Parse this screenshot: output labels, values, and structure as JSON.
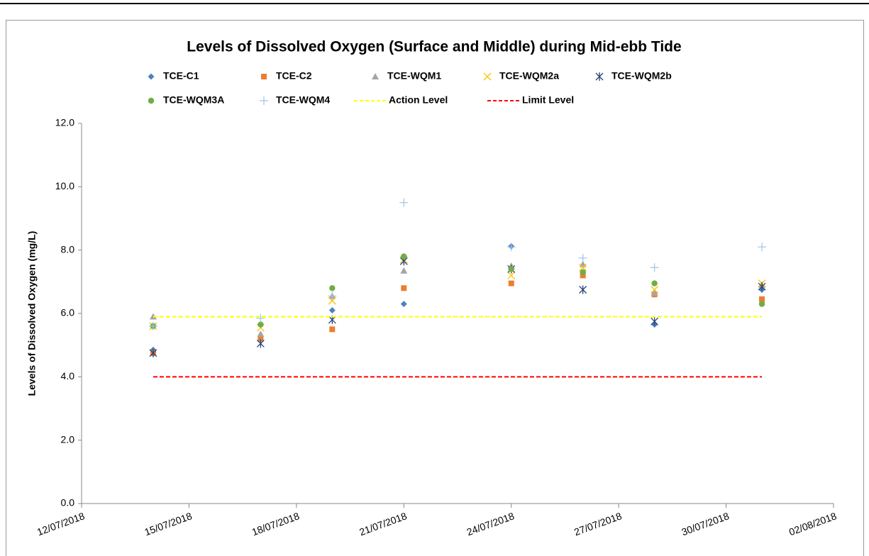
{
  "chart_data": {
    "type": "scatter",
    "title": "Levels of Dissolved Oxygen (Surface and Middle) during Mid-ebb Tide",
    "y_label": "Levels of Dissolved Oxygen (mg/L)",
    "x": [
      "2018-07-14",
      "2018-07-17",
      "2018-07-19",
      "2018-07-21",
      "2018-07-24",
      "2018-07-26",
      "2018-07-28",
      "2018-07-31"
    ],
    "xlim": [
      "2018-07-12",
      "2018-08-02"
    ],
    "xticks": [
      {
        "value": "2018-07-12",
        "label": "12/07/2018"
      },
      {
        "value": "2018-07-15",
        "label": "15/07/2018"
      },
      {
        "value": "2018-07-18",
        "label": "18/07/2018"
      },
      {
        "value": "2018-07-21",
        "label": "21/07/2018"
      },
      {
        "value": "2018-07-24",
        "label": "24/07/2018"
      },
      {
        "value": "2018-07-27",
        "label": "27/07/2018"
      },
      {
        "value": "2018-07-30",
        "label": "30/07/2018"
      },
      {
        "value": "2018-08-02",
        "label": "02/08/2018"
      }
    ],
    "ylim": [
      0,
      12
    ],
    "yticks": [
      {
        "value": 0,
        "label": "0.0"
      },
      {
        "value": 2,
        "label": "2.0"
      },
      {
        "value": 4,
        "label": "4.0"
      },
      {
        "value": 6,
        "label": "6.0"
      },
      {
        "value": 8,
        "label": "8.0"
      },
      {
        "value": 10,
        "label": "10.0"
      },
      {
        "value": 12,
        "label": "12.0"
      }
    ],
    "grid": false,
    "legend": "top",
    "series": [
      {
        "name": "TCE-C1",
        "color": "#4f81bd",
        "marker": "diamond",
        "values": [
          4.85,
          5.65,
          6.1,
          6.3,
          8.12,
          7.3,
          5.65,
          6.75
        ]
      },
      {
        "name": "TCE-C2",
        "color": "#ed7d31",
        "marker": "square",
        "values": [
          4.75,
          5.2,
          5.5,
          6.8,
          6.95,
          7.2,
          6.6,
          6.45
        ]
      },
      {
        "name": "TCE-WQM1",
        "color": "#a5a5a5",
        "marker": "triangle",
        "values": [
          5.9,
          5.35,
          6.55,
          7.35,
          7.5,
          7.55,
          6.65,
          6.9
        ]
      },
      {
        "name": "TCE-WQM2a",
        "color": "#ffc000",
        "marker": "x",
        "values": [
          5.6,
          5.55,
          6.4,
          7.7,
          7.2,
          7.45,
          6.75,
          6.95
        ]
      },
      {
        "name": "TCE-WQM2b",
        "color": "#264478",
        "marker": "asterisk",
        "values": [
          4.75,
          5.05,
          5.8,
          7.65,
          7.4,
          6.75,
          5.75,
          6.85
        ]
      },
      {
        "name": "TCE-WQM3A",
        "color": "#70ad47",
        "marker": "circle",
        "values": [
          5.6,
          5.65,
          6.8,
          7.8,
          7.4,
          7.3,
          6.95,
          6.3
        ]
      },
      {
        "name": "TCE-WQM4",
        "color": "#9dc3e6",
        "marker": "plus",
        "values": [
          5.6,
          5.85,
          6.55,
          9.5,
          8.1,
          7.75,
          7.45,
          8.1
        ]
      },
      {
        "name": "Action Level",
        "color": "#ffff00",
        "marker": "dashed-line",
        "values": [
          5.9,
          5.9,
          5.9,
          5.9,
          5.9,
          5.9,
          5.9,
          5.9
        ]
      },
      {
        "name": "Limit Level",
        "color": "#ff0000",
        "marker": "dashed-line",
        "values": [
          4.0,
          4.0,
          4.0,
          4.0,
          4.0,
          4.0,
          4.0,
          4.0
        ]
      }
    ]
  }
}
